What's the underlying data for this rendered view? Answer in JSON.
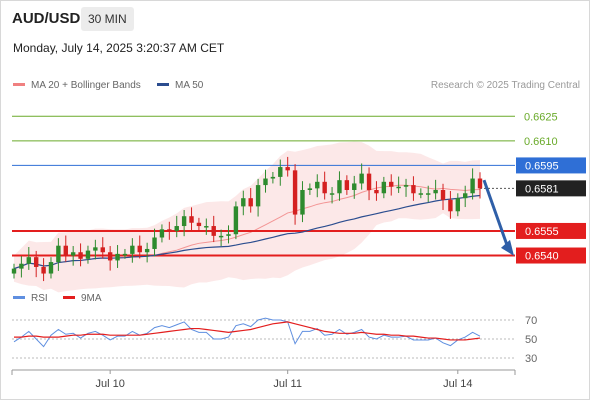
{
  "header": {
    "pair": "AUD/USD",
    "timeframe": "30 MIN",
    "datetime": "Monday, July 14, 2025 3:20:37 AM CET"
  },
  "legend": {
    "bollinger": "MA 20 + Bollinger Bands",
    "ma50": "MA 50",
    "credit": "Research © 2025 Trading Central"
  },
  "rsi_legend": {
    "rsi": "RSI",
    "ma": "9MA"
  },
  "colors": {
    "up_candle": "#2e8b2e",
    "down_candle": "#d42020",
    "bollinger": "#f08080",
    "ma50": "#2b4d8f",
    "resistance": "#6aaa2a",
    "pivot": "#2f6fd6",
    "support": "#e31e1e",
    "arrow": "#2f5fa8",
    "rsi": "#5f8fe0",
    "rsi_ma": "#e31e1e"
  },
  "chart_data": {
    "type": "candlestick",
    "instrument": "AUD/USD",
    "y_range": [
      0.6522,
      0.6638
    ],
    "x_labels": [
      {
        "label": "Jul 10",
        "index": 13
      },
      {
        "label": "Jul 11",
        "index": 37
      },
      {
        "label": "Jul 14",
        "index": 60
      }
    ],
    "levels": [
      {
        "value": 0.6625,
        "label": "0.6625",
        "kind": "resistance"
      },
      {
        "value": 0.661,
        "label": "0.6610",
        "kind": "resistance"
      },
      {
        "value": 0.6595,
        "label": "0.6595",
        "kind": "pivot"
      },
      {
        "value": 0.6581,
        "label": "0.6581",
        "kind": "last"
      },
      {
        "value": 0.6555,
        "label": "0.6555",
        "kind": "support"
      },
      {
        "value": 0.654,
        "label": "0.6540",
        "kind": "support"
      }
    ],
    "forecast_arrow": {
      "from": 0.6586,
      "to": 0.6541
    },
    "close": [
      0.6532,
      0.6535,
      0.6539,
      0.6533,
      0.6529,
      0.6536,
      0.6546,
      0.654,
      0.6542,
      0.6538,
      0.6543,
      0.6545,
      0.6542,
      0.6537,
      0.6541,
      0.6541,
      0.6546,
      0.6542,
      0.6544,
      0.6551,
      0.6556,
      0.6555,
      0.6558,
      0.6564,
      0.656,
      0.6558,
      0.6558,
      0.6552,
      0.6552,
      0.6553,
      0.657,
      0.6575,
      0.657,
      0.6583,
      0.6587,
      0.6588,
      0.6594,
      0.6592,
      0.6565,
      0.658,
      0.6581,
      0.6585,
      0.6578,
      0.6578,
      0.6586,
      0.658,
      0.6584,
      0.659,
      0.658,
      0.6578,
      0.6585,
      0.6582,
      0.6582,
      0.6583,
      0.6578,
      0.6578,
      0.6578,
      0.658,
      0.6574,
      0.6567,
      0.6575,
      0.6578,
      0.6587,
      0.6581
    ],
    "rsi": {
      "levels": [
        70,
        50,
        30
      ],
      "rsi": [
        47,
        52,
        58,
        50,
        42,
        54,
        60,
        55,
        56,
        51,
        56,
        58,
        54,
        49,
        53,
        53,
        58,
        54,
        56,
        62,
        64,
        62,
        65,
        68,
        60,
        57,
        57,
        50,
        50,
        52,
        64,
        66,
        63,
        70,
        72,
        70,
        70,
        68,
        45,
        58,
        58,
        61,
        54,
        55,
        60,
        55,
        57,
        60,
        52,
        50,
        54,
        52,
        52,
        53,
        49,
        49,
        49,
        51,
        46,
        43,
        49,
        52,
        57,
        53
      ],
      "ma": [
        52,
        52,
        53,
        53,
        52,
        52,
        52,
        53,
        54,
        54,
        55,
        55,
        55,
        54,
        54,
        54,
        54,
        54,
        55,
        56,
        57,
        58,
        59,
        60,
        61,
        61,
        60,
        59,
        58,
        57,
        58,
        59,
        60,
        62,
        64,
        66,
        67,
        68,
        66,
        64,
        62,
        60,
        58,
        57,
        56,
        56,
        56,
        57,
        56,
        55,
        55,
        54,
        54,
        53,
        53,
        52,
        51,
        51,
        50,
        49,
        49,
        49,
        50,
        51
      ]
    }
  }
}
